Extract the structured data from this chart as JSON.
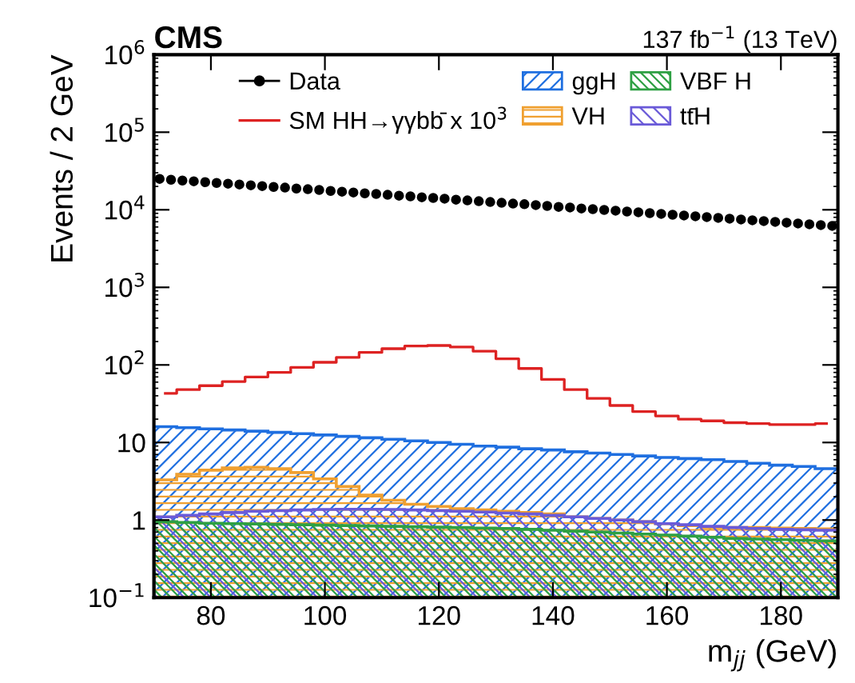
{
  "chart_data": {
    "type": "histogram",
    "title": "CMS",
    "subtitle": "137 fb$^{−1}$ (13 TeV)",
    "xlabel": "m$_{jj}$ (GeV)",
    "ylabel": "Events / 2 GeV",
    "log": "y",
    "legend": "top",
    "xlim": [
      70,
      190
    ],
    "xticks": [
      80,
      100,
      120,
      140,
      160,
      180
    ],
    "ylim": [
      0.1,
      1000000
    ],
    "yticks": [
      {
        "value": 0.1,
        "label": "10$^{−1}$"
      },
      1,
      10,
      {
        "value": 100,
        "label": "10$^{2}$"
      },
      {
        "value": 1000,
        "label": "10$^{3}$"
      },
      {
        "value": 10000,
        "label": "10$^{4}$"
      },
      {
        "value": 100000,
        "label": "10$^{5}$"
      },
      {
        "value": 1000000,
        "label": "10$^{6}$"
      }
    ],
    "bins": [
      70,
      74,
      78,
      82,
      86,
      90,
      94,
      98,
      102,
      106,
      110,
      114,
      118,
      122,
      126,
      130,
      134,
      138,
      142,
      146,
      150,
      154,
      158,
      162,
      166,
      170,
      174,
      178,
      182,
      186,
      190
    ],
    "series": [
      {
        "name": "ggH",
        "type": "histogram",
        "color": "#1f6fe0",
        "values": [
          16,
          15.5,
          15,
          14.5,
          14,
          13.5,
          13,
          12.5,
          12,
          11.5,
          11,
          10.5,
          10,
          9.5,
          9,
          8.7,
          8.3,
          8,
          7.6,
          7.3,
          7,
          6.7,
          6.4,
          6.2,
          6,
          5.7,
          5.4,
          5.1,
          4.9,
          4.6
        ]
      },
      {
        "name": "VH",
        "type": "histogram",
        "color": "#f0a030",
        "values": [
          3.3,
          3.9,
          4.4,
          4.7,
          4.8,
          4.6,
          4.1,
          3.4,
          2.7,
          2.1,
          1.8,
          1.6,
          1.5,
          1.4,
          1.35,
          1.3,
          1.25,
          1.2,
          1.1,
          1.05,
          1,
          0.95,
          0.9,
          0.85,
          0.8,
          0.8,
          0.8,
          0.79,
          0.78,
          0.77
        ]
      },
      {
        "name": "tt̄H",
        "type": "histogram",
        "color": "#6a5ad8",
        "values": [
          1.1,
          1.15,
          1.2,
          1.25,
          1.3,
          1.32,
          1.35,
          1.37,
          1.38,
          1.38,
          1.37,
          1.35,
          1.32,
          1.3,
          1.27,
          1.23,
          1.2,
          1.15,
          1.1,
          1.05,
          1,
          0.95,
          0.9,
          0.87,
          0.83,
          0.8,
          0.78,
          0.76,
          0.75,
          0.74
        ]
      },
      {
        "name": "VBF H",
        "type": "histogram",
        "color": "#2ea043",
        "values": [
          0.95,
          0.93,
          0.91,
          0.9,
          0.89,
          0.88,
          0.87,
          0.86,
          0.85,
          0.84,
          0.83,
          0.82,
          0.81,
          0.8,
          0.79,
          0.78,
          0.76,
          0.74,
          0.72,
          0.7,
          0.68,
          0.66,
          0.64,
          0.62,
          0.6,
          0.58,
          0.57,
          0.56,
          0.55,
          0.54
        ]
      },
      {
        "name": "SM HH→γγbb̄ x 10$^{3}$",
        "type": "step",
        "color": "#dd2222",
        "x": [
          72,
          76,
          80,
          84,
          88,
          92,
          96,
          100,
          104,
          108,
          112,
          116,
          120,
          124,
          128,
          132,
          136,
          140,
          144,
          148,
          152,
          156,
          160,
          164,
          168,
          172,
          176,
          180,
          184,
          188
        ],
        "values": [
          43,
          48,
          54,
          61,
          70,
          80,
          93,
          108,
          125,
          145,
          162,
          175,
          178,
          170,
          150,
          120,
          90,
          65,
          48,
          37,
          30,
          25,
          22,
          20,
          19,
          18,
          17.5,
          17,
          17,
          17.5
        ]
      },
      {
        "name": "Data",
        "type": "scatter",
        "color": "#000000",
        "marker": "circle",
        "x": [
          71,
          73,
          75,
          77,
          79,
          81,
          83,
          85,
          87,
          89,
          91,
          93,
          95,
          97,
          99,
          101,
          103,
          105,
          107,
          109,
          111,
          113,
          115,
          117,
          119,
          121,
          123,
          125,
          127,
          129,
          131,
          133,
          135,
          137,
          139,
          141,
          143,
          145,
          147,
          149,
          151,
          153,
          155,
          157,
          159,
          161,
          163,
          165,
          167,
          169,
          171,
          173,
          175,
          177,
          179,
          181,
          183,
          185,
          187,
          189
        ],
        "values": [
          25000,
          24400,
          23800,
          23300,
          22700,
          22200,
          21700,
          21200,
          20700,
          20200,
          19700,
          19300,
          18800,
          18400,
          18000,
          17500,
          17100,
          16700,
          16300,
          16000,
          15600,
          15200,
          14900,
          14500,
          14200,
          13900,
          13500,
          13200,
          12900,
          12600,
          12300,
          12000,
          11800,
          11500,
          11200,
          10900,
          10700,
          10400,
          10200,
          9960,
          9730,
          9500,
          9280,
          9060,
          8850,
          8640,
          8440,
          8240,
          8050,
          7860,
          7680,
          7500,
          7320,
          7150,
          6980,
          6820,
          6660,
          6500,
          6350,
          6200
        ]
      }
    ]
  }
}
